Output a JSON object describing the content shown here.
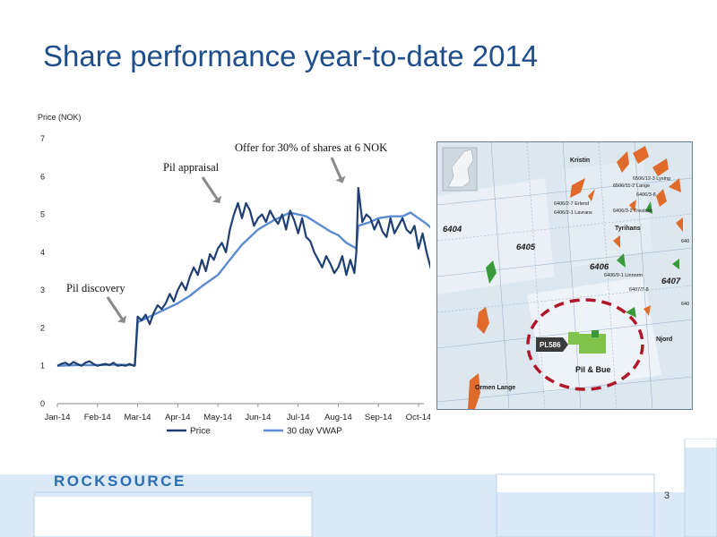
{
  "slide": {
    "title": "Share performance year-to-date 2014",
    "page_number": "3"
  },
  "brand": {
    "logo_text": "ROCKSOURCE"
  },
  "colors": {
    "title": "#1f4e8c",
    "price": "#1f3f73",
    "vwap": "#5b8bd0",
    "accent": "#2a6db0"
  },
  "chart_data": {
    "type": "line",
    "ylabel": "Price (NOK)",
    "ylim": [
      0,
      7
    ],
    "yticks": [
      0,
      1,
      2,
      3,
      4,
      5,
      6,
      7
    ],
    "xticks": [
      "Jan-14",
      "Feb-14",
      "Mar-14",
      "Apr-14",
      "May-14",
      "Jun-14",
      "Jul-14",
      "Aug-14",
      "Sep-14",
      "Oct-14"
    ],
    "grid": false,
    "legend_position": "bottom",
    "annotations": [
      {
        "text": "Pil discovery",
        "x": 2.0,
        "y": 2.2
      },
      {
        "text": "Pil appraisal",
        "x": 4.0,
        "y": 5.3
      },
      {
        "text": "Offer for 30% of shares at 6 NOK",
        "x": 7.7,
        "y": 6.1
      }
    ],
    "series": [
      {
        "name": "Price",
        "x": [
          0,
          0.1,
          0.2,
          0.3,
          0.4,
          0.5,
          0.6,
          0.7,
          0.8,
          0.9,
          1.0,
          1.1,
          1.2,
          1.3,
          1.4,
          1.5,
          1.6,
          1.7,
          1.8,
          1.9,
          1.93,
          2.0,
          2.1,
          2.2,
          2.3,
          2.4,
          2.5,
          2.6,
          2.7,
          2.8,
          2.9,
          3.0,
          3.1,
          3.2,
          3.3,
          3.4,
          3.5,
          3.6,
          3.7,
          3.8,
          3.9,
          4.0,
          4.1,
          4.2,
          4.3,
          4.4,
          4.5,
          4.6,
          4.7,
          4.8,
          4.9,
          5.0,
          5.1,
          5.2,
          5.3,
          5.4,
          5.5,
          5.6,
          5.7,
          5.8,
          5.9,
          6.0,
          6.1,
          6.2,
          6.3,
          6.4,
          6.5,
          6.6,
          6.7,
          6.8,
          6.9,
          7.0,
          7.1,
          7.2,
          7.3,
          7.4,
          7.45,
          7.5,
          7.6,
          7.7,
          7.8,
          7.9,
          8.0,
          8.1,
          8.2,
          8.3,
          8.4,
          8.5,
          8.6,
          8.7,
          8.8,
          8.9,
          9.0,
          9.1,
          9.2,
          9.3,
          9.4,
          9.5
        ],
        "y": [
          1.0,
          1.05,
          1.08,
          1.02,
          1.1,
          1.05,
          1.0,
          1.08,
          1.12,
          1.05,
          1.0,
          1.03,
          1.05,
          1.02,
          1.08,
          1.0,
          1.02,
          1.0,
          1.05,
          1.0,
          1.0,
          2.3,
          2.2,
          2.35,
          2.1,
          2.4,
          2.6,
          2.5,
          2.65,
          2.9,
          2.7,
          3.0,
          3.2,
          3.0,
          3.35,
          3.6,
          3.4,
          3.8,
          3.5,
          3.95,
          3.8,
          4.1,
          4.25,
          4.0,
          4.6,
          5.0,
          5.3,
          4.9,
          5.3,
          5.1,
          4.7,
          4.9,
          5.0,
          4.8,
          5.1,
          4.9,
          4.75,
          5.0,
          4.6,
          5.1,
          4.85,
          4.5,
          4.9,
          4.4,
          4.3,
          4.0,
          3.8,
          3.6,
          3.9,
          3.7,
          3.45,
          3.6,
          3.9,
          3.4,
          3.8,
          3.45,
          4.0,
          5.7,
          4.8,
          5.0,
          4.9,
          4.6,
          4.85,
          4.55,
          4.4,
          4.9,
          4.5,
          4.7,
          4.9,
          4.6,
          4.5,
          4.7,
          4.1,
          4.5,
          4.0,
          3.6,
          3.3,
          3.4
        ]
      },
      {
        "name": "30 day VWAP",
        "x": [
          0,
          0.5,
          1.0,
          1.5,
          1.93,
          2.0,
          2.3,
          2.6,
          3.0,
          3.3,
          3.6,
          4.0,
          4.3,
          4.6,
          5.0,
          5.4,
          5.8,
          6.2,
          6.5,
          6.8,
          7.0,
          7.2,
          7.45,
          7.5,
          7.8,
          8.0,
          8.3,
          8.6,
          8.8,
          9.0,
          9.2,
          9.5
        ],
        "y": [
          1.0,
          1.02,
          1.02,
          1.03,
          1.02,
          2.15,
          2.3,
          2.45,
          2.65,
          2.85,
          3.1,
          3.4,
          3.8,
          4.2,
          4.6,
          4.85,
          5.05,
          4.95,
          4.75,
          4.55,
          4.45,
          4.25,
          4.1,
          4.7,
          4.8,
          4.9,
          4.95,
          4.95,
          5.05,
          4.9,
          4.75,
          4.45
        ]
      }
    ]
  },
  "map": {
    "quadrants": [
      "6404",
      "6405",
      "6406",
      "6407"
    ],
    "labels": [
      "Kristin",
      "6506/12-3 Lysing",
      "6506/11-2 Lange",
      "6406/3-8",
      "6406/2-7 Erlend",
      "6406/2-1 Lavrans",
      "6406/3-2 Trestakk",
      "Tyrihans",
      "6406/9-1 Linnorm",
      "6407/7-8",
      "Njord",
      "Ormen Lange",
      "640"
    ],
    "license": "PL586",
    "field": "Pil & Bue"
  }
}
